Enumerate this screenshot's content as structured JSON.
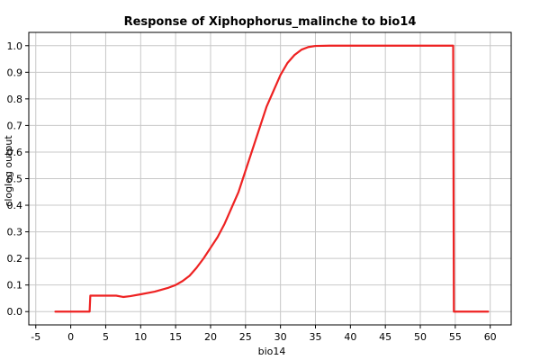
{
  "chart_data": {
    "type": "line",
    "title": "Response of Xiphophorus_malinche to bio14",
    "xlabel": "bio14",
    "ylabel": "cloglog output",
    "xlim": [
      -6,
      63
    ],
    "ylim": [
      -0.05,
      1.05
    ],
    "x_ticks": [
      -5,
      0,
      5,
      10,
      15,
      20,
      25,
      30,
      35,
      40,
      45,
      50,
      55,
      60
    ],
    "y_ticks": [
      0.0,
      0.1,
      0.2,
      0.3,
      0.4,
      0.5,
      0.6,
      0.7,
      0.8,
      0.9,
      1.0
    ],
    "x_tick_labels": [
      "-5",
      "0",
      "5",
      "10",
      "15",
      "20",
      "25",
      "30",
      "35",
      "40",
      "45",
      "50",
      "55",
      "60"
    ],
    "y_tick_labels": [
      "0.0",
      "0.1",
      "0.2",
      "0.3",
      "0.4",
      "0.5",
      "0.6",
      "0.7",
      "0.8",
      "0.9",
      "1.0"
    ],
    "grid": true,
    "series": [
      {
        "color": "#ee2222",
        "points": [
          [
            -2.2,
            0.0
          ],
          [
            2.7,
            0.0
          ],
          [
            2.8,
            0.06
          ],
          [
            6.5,
            0.06
          ],
          [
            7.5,
            0.055
          ],
          [
            8.5,
            0.058
          ],
          [
            10,
            0.065
          ],
          [
            12,
            0.075
          ],
          [
            14,
            0.09
          ],
          [
            15,
            0.1
          ],
          [
            16,
            0.115
          ],
          [
            17,
            0.135
          ],
          [
            18,
            0.165
          ],
          [
            19,
            0.2
          ],
          [
            20,
            0.24
          ],
          [
            21,
            0.28
          ],
          [
            22,
            0.33
          ],
          [
            23,
            0.39
          ],
          [
            24,
            0.45
          ],
          [
            25,
            0.53
          ],
          [
            26,
            0.61
          ],
          [
            27,
            0.69
          ],
          [
            28,
            0.77
          ],
          [
            29,
            0.83
          ],
          [
            30,
            0.89
          ],
          [
            31,
            0.935
          ],
          [
            32,
            0.965
          ],
          [
            33,
            0.985
          ],
          [
            34,
            0.995
          ],
          [
            35,
            0.999
          ],
          [
            37,
            1.0
          ],
          [
            54.7,
            1.0
          ],
          [
            54.8,
            0.0
          ],
          [
            59.7,
            0.0
          ]
        ]
      }
    ]
  },
  "colors": {
    "background": "#ffffff",
    "grid": "#c8c8c8",
    "axis": "#000000",
    "line": "#ee2222"
  }
}
